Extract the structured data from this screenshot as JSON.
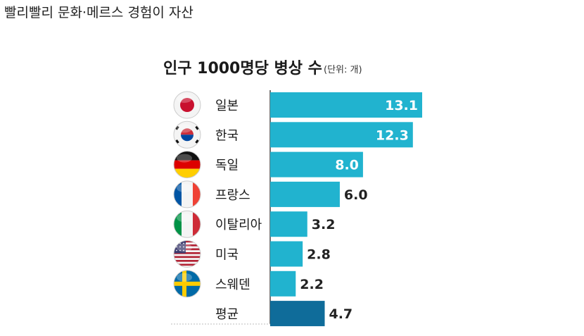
{
  "page": {
    "headline": "빨리빨리 문화·메르스 경험이 자산"
  },
  "chart_data": {
    "type": "bar",
    "orientation": "horizontal",
    "title": "인구 1000명당 병상 수",
    "unit_label": "(단위: 개)",
    "categories": [
      "일본",
      "한국",
      "독일",
      "프랑스",
      "이탈리아",
      "미국",
      "스웨덴",
      "평균"
    ],
    "values": [
      13.1,
      12.3,
      8.0,
      6.0,
      3.2,
      2.8,
      2.2,
      4.7
    ],
    "value_labels": [
      "13.1",
      "12.3",
      "8.0",
      "6.0",
      "3.2",
      "2.8",
      "2.2",
      "4.7"
    ],
    "flags": [
      "japan-flag-icon",
      "korea-flag-icon",
      "germany-flag-icon",
      "france-flag-icon",
      "italy-flag-icon",
      "usa-flag-icon",
      "sweden-flag-icon",
      null
    ],
    "xlim": [
      0,
      13.1
    ],
    "colors": {
      "bar": "#21b3cf",
      "average_bar": "#0f6c9a",
      "inside_label": "#ffffff",
      "outside_label": "#222222",
      "axis": "#444444"
    }
  }
}
